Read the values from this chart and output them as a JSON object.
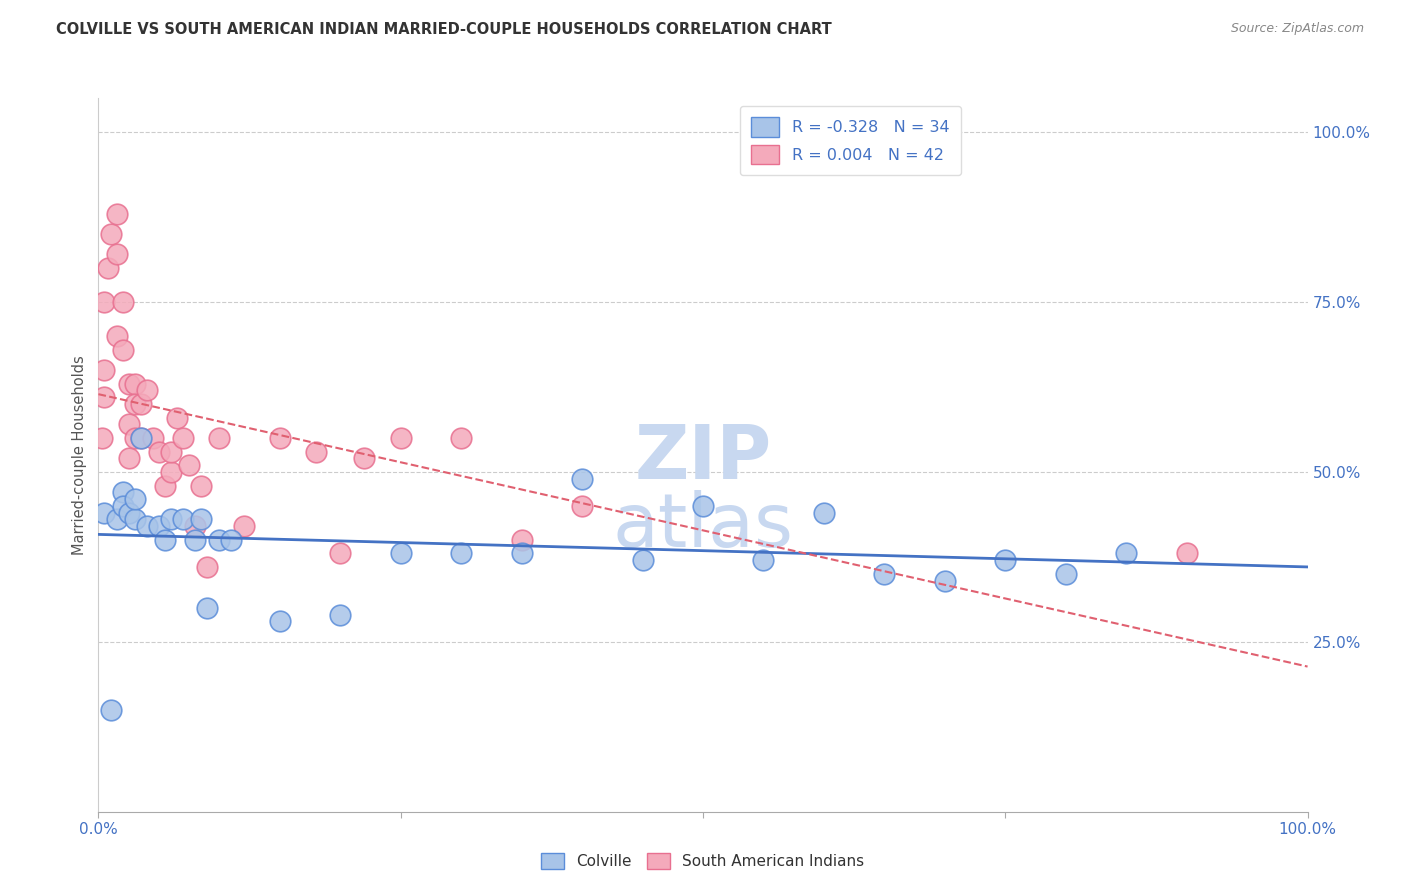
{
  "title": "COLVILLE VS SOUTH AMERICAN INDIAN MARRIED-COUPLE HOUSEHOLDS CORRELATION CHART",
  "source": "Source: ZipAtlas.com",
  "ylabel": "Married-couple Households",
  "legend_label1": "Colville",
  "legend_label2": "South American Indians",
  "r_blue": -0.328,
  "n_blue": 34,
  "r_pink": 0.004,
  "n_pink": 42,
  "blue_color": "#A8C4E8",
  "pink_color": "#F4AABB",
  "blue_edge_color": "#5B8DD9",
  "pink_edge_color": "#E87090",
  "blue_line_color": "#4472C4",
  "pink_line_color": "#E06070",
  "title_color": "#333333",
  "source_color": "#888888",
  "axis_tick_color": "#4472C4",
  "background_color": "#FFFFFF",
  "grid_color": "#CCCCCC",
  "watermark_color": "#C8D8F0",
  "blue_x": [
    0.5,
    1.0,
    1.5,
    2.0,
    2.0,
    2.5,
    3.0,
    3.0,
    3.5,
    4.0,
    5.0,
    5.5,
    6.0,
    7.0,
    8.0,
    8.5,
    9.0,
    10.0,
    11.0,
    15.0,
    20.0,
    25.0,
    30.0,
    35.0,
    40.0,
    45.0,
    50.0,
    55.0,
    60.0,
    65.0,
    70.0,
    75.0,
    80.0,
    85.0
  ],
  "blue_y": [
    44.0,
    15.0,
    43.0,
    47.0,
    45.0,
    44.0,
    43.0,
    46.0,
    55.0,
    42.0,
    42.0,
    40.0,
    43.0,
    43.0,
    40.0,
    43.0,
    30.0,
    40.0,
    40.0,
    28.0,
    29.0,
    38.0,
    38.0,
    38.0,
    49.0,
    37.0,
    45.0,
    37.0,
    44.0,
    35.0,
    34.0,
    37.0,
    35.0,
    38.0
  ],
  "pink_x": [
    0.3,
    0.5,
    0.5,
    0.5,
    0.8,
    1.0,
    1.5,
    1.5,
    1.5,
    2.0,
    2.0,
    2.5,
    2.5,
    2.5,
    3.0,
    3.0,
    3.0,
    3.5,
    3.5,
    4.0,
    4.5,
    5.0,
    5.5,
    6.0,
    6.0,
    6.5,
    7.0,
    7.5,
    8.0,
    8.5,
    9.0,
    10.0,
    12.0,
    15.0,
    18.0,
    20.0,
    22.0,
    25.0,
    30.0,
    35.0,
    40.0,
    90.0
  ],
  "pink_y": [
    55.0,
    65.0,
    75.0,
    61.0,
    80.0,
    85.0,
    88.0,
    82.0,
    70.0,
    75.0,
    68.0,
    63.0,
    57.0,
    52.0,
    63.0,
    60.0,
    55.0,
    60.0,
    55.0,
    62.0,
    55.0,
    53.0,
    48.0,
    50.0,
    53.0,
    58.0,
    55.0,
    51.0,
    42.0,
    48.0,
    36.0,
    55.0,
    42.0,
    55.0,
    53.0,
    38.0,
    52.0,
    55.0,
    55.0,
    40.0,
    45.0,
    38.0
  ],
  "ytick_values": [
    25,
    50,
    75,
    100
  ],
  "ytick_labels": [
    "25.0%",
    "50.0%",
    "75.0%",
    "100.0%"
  ],
  "xtick_values": [
    0,
    25,
    50,
    75,
    100
  ],
  "xtick_labels": [
    "0.0%",
    "",
    "",
    "",
    "100.0%"
  ],
  "xlim": [
    0,
    100
  ],
  "ylim": [
    0,
    105
  ]
}
